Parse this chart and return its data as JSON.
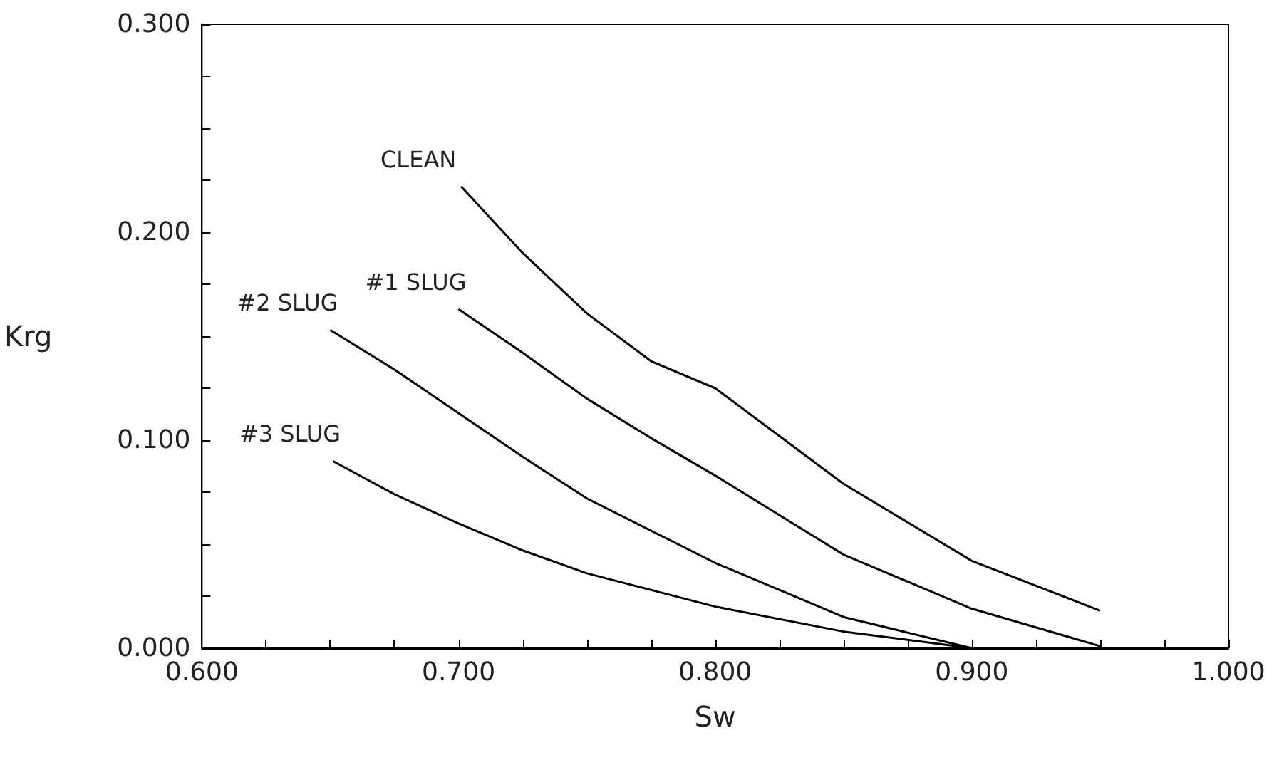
{
  "chart_data": {
    "type": "line",
    "xlabel": "Sw",
    "ylabel": "Krg",
    "xlim": [
      0.6,
      1.0
    ],
    "ylim": [
      0,
      0.3
    ],
    "xticks": [
      {
        "value": 0.6,
        "label": "0.600"
      },
      {
        "value": 0.625,
        "label": null
      },
      {
        "value": 0.65,
        "label": null
      },
      {
        "value": 0.675,
        "label": null
      },
      {
        "value": 0.7,
        "label": "0.700"
      },
      {
        "value": 0.725,
        "label": null
      },
      {
        "value": 0.75,
        "label": null
      },
      {
        "value": 0.775,
        "label": null
      },
      {
        "value": 0.8,
        "label": "0.800"
      },
      {
        "value": 0.825,
        "label": null
      },
      {
        "value": 0.85,
        "label": null
      },
      {
        "value": 0.875,
        "label": null
      },
      {
        "value": 0.9,
        "label": "0.900"
      },
      {
        "value": 0.925,
        "label": null
      },
      {
        "value": 0.95,
        "label": null
      },
      {
        "value": 0.975,
        "label": null
      },
      {
        "value": 1.0,
        "label": "1.000"
      }
    ],
    "yticks": [
      {
        "value": 0,
        "label": "0.000"
      },
      {
        "value": 0.025,
        "label": null
      },
      {
        "value": 0.05,
        "label": null
      },
      {
        "value": 0.075,
        "label": null
      },
      {
        "value": 0.1,
        "label": "0.100"
      },
      {
        "value": 0.125,
        "label": null
      },
      {
        "value": 0.15,
        "label": null
      },
      {
        "value": 0.175,
        "label": null
      },
      {
        "value": 0.2,
        "label": "0.200"
      },
      {
        "value": 0.225,
        "label": null
      },
      {
        "value": 0.25,
        "label": null
      },
      {
        "value": 0.275,
        "label": null
      },
      {
        "value": 0.3,
        "label": "0.300"
      }
    ],
    "grid": false,
    "legend": false,
    "marker": "none",
    "line_style": "solid",
    "series": [
      {
        "name": "CLEAN",
        "color": "#000000",
        "x": [
          0.701,
          0.725,
          0.75,
          0.775,
          0.8,
          0.85,
          0.9,
          0.95
        ],
        "values": [
          0.222,
          0.19,
          0.161,
          0.138,
          0.125,
          0.079,
          0.042,
          0.018
        ]
      },
      {
        "name": "#1 SLUG",
        "color": "#000000",
        "x": [
          0.7,
          0.725,
          0.75,
          0.775,
          0.8,
          0.85,
          0.9,
          0.95
        ],
        "values": [
          0.163,
          0.142,
          0.12,
          0.101,
          0.083,
          0.045,
          0.019,
          0.001
        ]
      },
      {
        "name": "#2 SLUG",
        "color": "#000000",
        "x": [
          0.65,
          0.675,
          0.7,
          0.725,
          0.75,
          0.8,
          0.85,
          0.9
        ],
        "values": [
          0.153,
          0.134,
          0.113,
          0.092,
          0.072,
          0.041,
          0.015,
          0.0
        ]
      },
      {
        "name": "#3 SLUG",
        "color": "#000000",
        "x": [
          0.651,
          0.675,
          0.7,
          0.725,
          0.75,
          0.8,
          0.85,
          0.9
        ],
        "values": [
          0.09,
          0.074,
          0.06,
          0.047,
          0.036,
          0.02,
          0.008,
          0.0
        ]
      }
    ]
  }
}
